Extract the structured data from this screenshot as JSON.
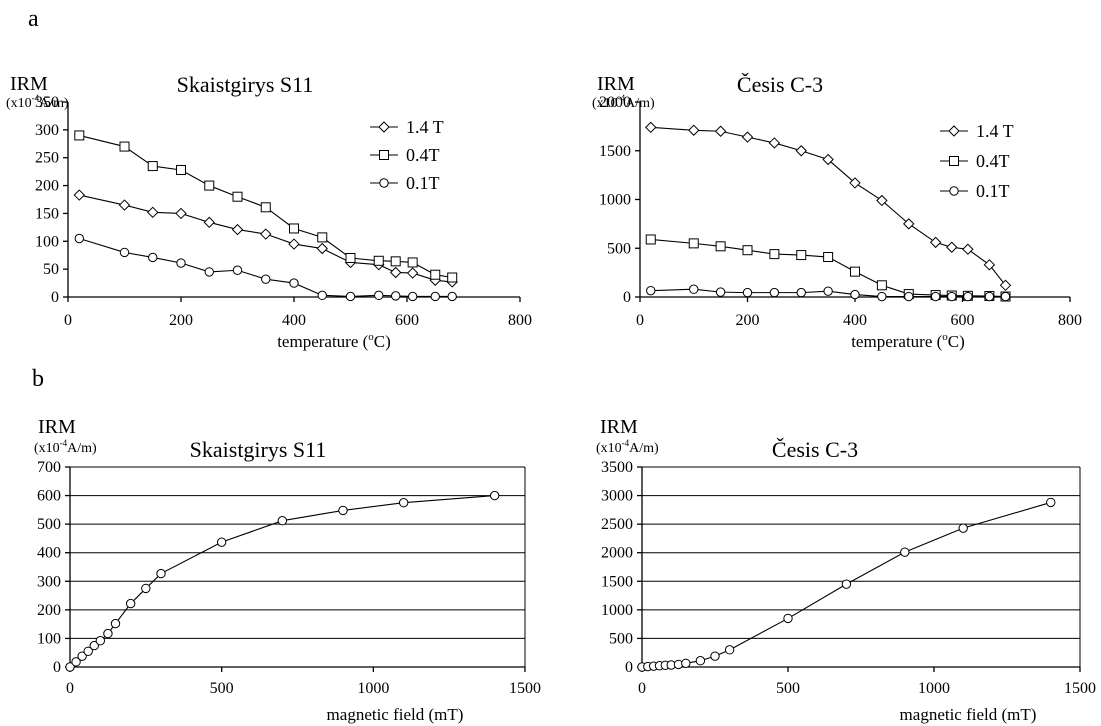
{
  "panel_labels": {
    "a": "a",
    "b": "b"
  },
  "chart_data": [
    {
      "type": "line",
      "panel": "a",
      "title": "Skaistgirys  S11",
      "ylabel": "IRM",
      "yunit_prefix": "(x10",
      "yunit_exp": "-4",
      "yunit_suffix": "A/m)",
      "xlabel_prefix": "temperature (",
      "xlabel_sup": "o",
      "xlabel_suffix": "C)",
      "xlim": [
        0,
        800
      ],
      "ylim": [
        0,
        350
      ],
      "xticks": [
        0,
        200,
        400,
        600,
        800
      ],
      "yticks": [
        0,
        50,
        100,
        150,
        200,
        250,
        300,
        350
      ],
      "grid": false,
      "legend_position": "top-right",
      "series": [
        {
          "name": "1.4 T",
          "marker": "diamond",
          "x": [
            20,
            100,
            150,
            200,
            250,
            300,
            350,
            400,
            450,
            500,
            550,
            580,
            610,
            650,
            680
          ],
          "y": [
            183,
            165,
            152,
            150,
            134,
            121,
            113,
            95,
            87,
            62,
            58,
            44,
            43,
            30,
            27
          ]
        },
        {
          "name": "0.4T",
          "marker": "square",
          "x": [
            20,
            100,
            150,
            200,
            250,
            300,
            350,
            400,
            450,
            500,
            550,
            580,
            610,
            650,
            680
          ],
          "y": [
            290,
            270,
            235,
            228,
            200,
            180,
            161,
            123,
            107,
            70,
            65,
            64,
            62,
            40,
            35
          ]
        },
        {
          "name": "0.1T",
          "marker": "circle",
          "x": [
            20,
            100,
            150,
            200,
            250,
            300,
            350,
            400,
            450,
            500,
            550,
            580,
            610,
            650,
            680
          ],
          "y": [
            105,
            80,
            71,
            61,
            45,
            48,
            32,
            25,
            3,
            1,
            3,
            2,
            1,
            1,
            1
          ]
        }
      ]
    },
    {
      "type": "line",
      "panel": "a",
      "title": "Česis  C-3",
      "ylabel": "IRM",
      "yunit_prefix": "(x10",
      "yunit_exp": "-4",
      "yunit_suffix": "A/m)",
      "xlabel_prefix": "temperature (",
      "xlabel_sup": "o",
      "xlabel_suffix": "C)",
      "xlim": [
        0,
        800
      ],
      "ylim": [
        0,
        2000
      ],
      "xticks": [
        0,
        200,
        400,
        600,
        800
      ],
      "yticks": [
        0,
        500,
        1000,
        1500,
        2000
      ],
      "grid": false,
      "legend_position": "top-right",
      "series": [
        {
          "name": "1.4 T",
          "marker": "diamond",
          "x": [
            20,
            100,
            150,
            200,
            250,
            300,
            350,
            400,
            450,
            500,
            550,
            580,
            610,
            650,
            680
          ],
          "y": [
            1740,
            1710,
            1700,
            1640,
            1580,
            1500,
            1410,
            1170,
            990,
            750,
            560,
            510,
            490,
            330,
            120
          ]
        },
        {
          "name": "0.4T",
          "marker": "square",
          "x": [
            20,
            100,
            150,
            200,
            250,
            300,
            350,
            400,
            450,
            500,
            550,
            580,
            610,
            650,
            680
          ],
          "y": [
            590,
            550,
            520,
            480,
            440,
            430,
            410,
            260,
            120,
            30,
            20,
            15,
            12,
            10,
            5
          ]
        },
        {
          "name": "0.1T",
          "marker": "circle",
          "x": [
            20,
            100,
            150,
            200,
            250,
            300,
            350,
            400,
            450,
            500,
            550,
            580,
            610,
            650,
            680
          ],
          "y": [
            65,
            80,
            50,
            45,
            45,
            45,
            60,
            25,
            5,
            5,
            5,
            5,
            5,
            5,
            5
          ]
        }
      ]
    },
    {
      "type": "line",
      "panel": "b",
      "title": "Skaistgirys  S11",
      "ylabel": "IRM",
      "yunit_prefix": "(x10",
      "yunit_exp": "-4",
      "yunit_suffix": "A/m)",
      "xlabel": "magnetic field (mT)",
      "xlim": [
        0,
        1500
      ],
      "ylim": [
        0,
        700
      ],
      "xticks": [
        0,
        500,
        1000,
        1500
      ],
      "yticks": [
        0,
        100,
        200,
        300,
        400,
        500,
        600,
        700
      ],
      "grid": true,
      "series": [
        {
          "marker": "circle",
          "x": [
            0,
            20,
            40,
            60,
            80,
            100,
            125,
            150,
            200,
            250,
            300,
            500,
            700,
            900,
            1100,
            1400
          ],
          "y": [
            0,
            18,
            38,
            55,
            75,
            92,
            117,
            152,
            222,
            275,
            327,
            437,
            512,
            548,
            575,
            600
          ]
        }
      ]
    },
    {
      "type": "line",
      "panel": "b",
      "title": "Česis  C-3",
      "ylabel": "IRM",
      "yunit_prefix": "(x10",
      "yunit_exp": "-4",
      "yunit_suffix": "A/m)",
      "xlabel": "magnetic field (mT)",
      "xlim": [
        0,
        1500
      ],
      "ylim": [
        0,
        3500
      ],
      "xticks": [
        0,
        500,
        1000,
        1500
      ],
      "yticks": [
        0,
        500,
        1000,
        1500,
        2000,
        2500,
        3000,
        3500
      ],
      "grid": true,
      "series": [
        {
          "marker": "circle",
          "x": [
            0,
            20,
            40,
            60,
            80,
            100,
            125,
            150,
            200,
            250,
            300,
            500,
            700,
            900,
            1100,
            1400
          ],
          "y": [
            0,
            8,
            15,
            22,
            30,
            35,
            45,
            65,
            110,
            190,
            300,
            850,
            1450,
            2010,
            2430,
            2880
          ]
        }
      ]
    }
  ]
}
